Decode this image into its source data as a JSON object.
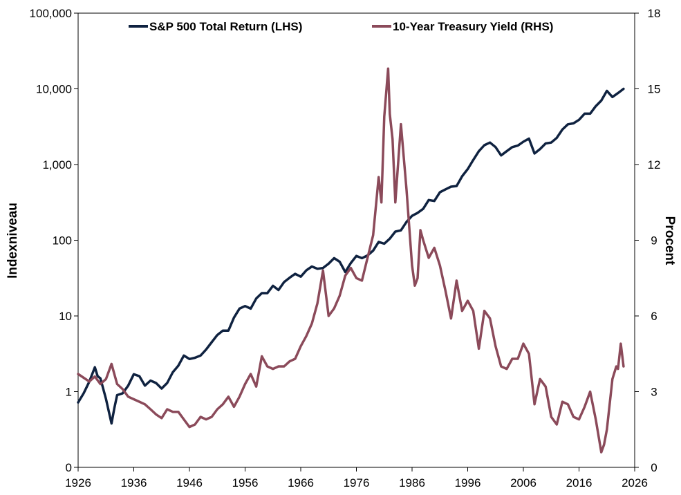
{
  "chart_data": {
    "type": "line",
    "x_axis": {
      "min": 1926,
      "max": 2026,
      "ticks": [
        "1926",
        "1936",
        "1946",
        "1956",
        "1966",
        "1976",
        "1986",
        "1996",
        "2006",
        "2016",
        "2026"
      ]
    },
    "y_left": {
      "label": "Indexniveau",
      "scale": "log",
      "ticks": [
        {
          "value": 0.1,
          "label": "0"
        },
        {
          "value": 1,
          "label": "1"
        },
        {
          "value": 10,
          "label": "10"
        },
        {
          "value": 100,
          "label": "100"
        },
        {
          "value": 1000,
          "label": "1,000"
        },
        {
          "value": 10000,
          "label": "10,000"
        },
        {
          "value": 100000,
          "label": "100,000"
        }
      ]
    },
    "y_right": {
      "label": "Procent",
      "scale": "linear",
      "min": 0,
      "max": 18,
      "ticks": [
        {
          "value": 0,
          "label": "0"
        },
        {
          "value": 3,
          "label": "3"
        },
        {
          "value": 6,
          "label": "6"
        },
        {
          "value": 9,
          "label": "9"
        },
        {
          "value": 12,
          "label": "12"
        },
        {
          "value": 15,
          "label": "15"
        },
        {
          "value": 18,
          "label": "18"
        }
      ]
    },
    "series": [
      {
        "name": "S&P 500 Total Return (LHS)",
        "color": "#0f2240",
        "axis": "left",
        "points": [
          [
            1926,
            0.72
          ],
          [
            1927,
            0.95
          ],
          [
            1928,
            1.35
          ],
          [
            1929,
            2.1
          ],
          [
            1929.5,
            1.6
          ],
          [
            1930,
            1.5
          ],
          [
            1931,
            0.8
          ],
          [
            1932,
            0.38
          ],
          [
            1932.5,
            0.6
          ],
          [
            1933,
            0.9
          ],
          [
            1934,
            0.95
          ],
          [
            1935,
            1.2
          ],
          [
            1936,
            1.7
          ],
          [
            1937,
            1.6
          ],
          [
            1938,
            1.2
          ],
          [
            1939,
            1.4
          ],
          [
            1940,
            1.3
          ],
          [
            1941,
            1.1
          ],
          [
            1942,
            1.3
          ],
          [
            1943,
            1.8
          ],
          [
            1944,
            2.2
          ],
          [
            1945,
            3.0
          ],
          [
            1946,
            2.7
          ],
          [
            1947,
            2.8
          ],
          [
            1948,
            3.0
          ],
          [
            1949,
            3.6
          ],
          [
            1950,
            4.5
          ],
          [
            1951,
            5.6
          ],
          [
            1952,
            6.4
          ],
          [
            1953,
            6.4
          ],
          [
            1954,
            9.5
          ],
          [
            1955,
            12.5
          ],
          [
            1956,
            13.5
          ],
          [
            1957,
            12.5
          ],
          [
            1958,
            17
          ],
          [
            1959,
            20
          ],
          [
            1960,
            20
          ],
          [
            1961,
            25
          ],
          [
            1962,
            22
          ],
          [
            1963,
            28
          ],
          [
            1964,
            32
          ],
          [
            1965,
            36
          ],
          [
            1966,
            33
          ],
          [
            1967,
            40
          ],
          [
            1968,
            45
          ],
          [
            1969,
            42
          ],
          [
            1970,
            43
          ],
          [
            1971,
            49
          ],
          [
            1972,
            58
          ],
          [
            1973,
            52
          ],
          [
            1974,
            38
          ],
          [
            1975,
            50
          ],
          [
            1976,
            62
          ],
          [
            1977,
            58
          ],
          [
            1978,
            63
          ],
          [
            1979,
            73
          ],
          [
            1980,
            95
          ],
          [
            1981,
            90
          ],
          [
            1982,
            105
          ],
          [
            1983,
            130
          ],
          [
            1984,
            135
          ],
          [
            1985,
            175
          ],
          [
            1986,
            210
          ],
          [
            1987,
            230
          ],
          [
            1988,
            260
          ],
          [
            1989,
            340
          ],
          [
            1990,
            330
          ],
          [
            1991,
            430
          ],
          [
            1992,
            470
          ],
          [
            1993,
            510
          ],
          [
            1994,
            520
          ],
          [
            1995,
            700
          ],
          [
            1996,
            870
          ],
          [
            1997,
            1150
          ],
          [
            1998,
            1500
          ],
          [
            1999,
            1800
          ],
          [
            2000,
            1950
          ],
          [
            2001,
            1700
          ],
          [
            2002,
            1320
          ],
          [
            2003,
            1500
          ],
          [
            2004,
            1700
          ],
          [
            2005,
            1780
          ],
          [
            2006,
            2000
          ],
          [
            2007,
            2200
          ],
          [
            2008,
            1400
          ],
          [
            2009,
            1600
          ],
          [
            2010,
            1900
          ],
          [
            2011,
            1950
          ],
          [
            2012,
            2250
          ],
          [
            2013,
            2900
          ],
          [
            2014,
            3400
          ],
          [
            2015,
            3500
          ],
          [
            2016,
            3900
          ],
          [
            2017,
            4700
          ],
          [
            2018,
            4700
          ],
          [
            2019,
            5900
          ],
          [
            2020,
            7000
          ],
          [
            2021,
            9400
          ],
          [
            2022,
            7800
          ],
          [
            2023,
            8800
          ],
          [
            2024,
            10000
          ]
        ]
      },
      {
        "name": "10-Year Treasury Yield (RHS)",
        "color": "#8b4a5a",
        "axis": "right",
        "points": [
          [
            1926,
            3.7
          ],
          [
            1928,
            3.4
          ],
          [
            1929,
            3.6
          ],
          [
            1930,
            3.3
          ],
          [
            1931,
            3.5
          ],
          [
            1932,
            4.1
          ],
          [
            1933,
            3.3
          ],
          [
            1934,
            3.1
          ],
          [
            1935,
            2.8
          ],
          [
            1936,
            2.7
          ],
          [
            1937,
            2.6
          ],
          [
            1938,
            2.5
          ],
          [
            1939,
            2.3
          ],
          [
            1940,
            2.1
          ],
          [
            1941,
            1.95
          ],
          [
            1942,
            2.3
          ],
          [
            1943,
            2.2
          ],
          [
            1944,
            2.2
          ],
          [
            1945,
            1.9
          ],
          [
            1946,
            1.6
          ],
          [
            1947,
            1.7
          ],
          [
            1948,
            2.0
          ],
          [
            1949,
            1.9
          ],
          [
            1950,
            2.0
          ],
          [
            1951,
            2.3
          ],
          [
            1952,
            2.5
          ],
          [
            1953,
            2.8
          ],
          [
            1954,
            2.4
          ],
          [
            1955,
            2.8
          ],
          [
            1956,
            3.3
          ],
          [
            1957,
            3.7
          ],
          [
            1958,
            3.2
          ],
          [
            1959,
            4.4
          ],
          [
            1960,
            4.0
          ],
          [
            1961,
            3.9
          ],
          [
            1962,
            4.0
          ],
          [
            1963,
            4.0
          ],
          [
            1964,
            4.2
          ],
          [
            1965,
            4.3
          ],
          [
            1966,
            4.8
          ],
          [
            1967,
            5.2
          ],
          [
            1968,
            5.7
          ],
          [
            1969,
            6.5
          ],
          [
            1970,
            7.8
          ],
          [
            1971,
            6.0
          ],
          [
            1972,
            6.3
          ],
          [
            1973,
            6.8
          ],
          [
            1974,
            7.6
          ],
          [
            1975,
            7.9
          ],
          [
            1976,
            7.5
          ],
          [
            1977,
            7.4
          ],
          [
            1978,
            8.3
          ],
          [
            1979,
            9.2
          ],
          [
            1980,
            11.5
          ],
          [
            1980.5,
            10.5
          ],
          [
            1981,
            13.9
          ],
          [
            1981.7,
            15.8
          ],
          [
            1982,
            14.0
          ],
          [
            1982.5,
            13.0
          ],
          [
            1983,
            10.5
          ],
          [
            1984,
            13.6
          ],
          [
            1985,
            11.0
          ],
          [
            1986,
            8.0
          ],
          [
            1986.5,
            7.2
          ],
          [
            1987,
            7.5
          ],
          [
            1987.5,
            9.4
          ],
          [
            1988,
            9.0
          ],
          [
            1989,
            8.3
          ],
          [
            1990,
            8.7
          ],
          [
            1991,
            8.0
          ],
          [
            1992,
            7.0
          ],
          [
            1993,
            5.9
          ],
          [
            1994,
            7.4
          ],
          [
            1995,
            6.2
          ],
          [
            1996,
            6.6
          ],
          [
            1997,
            6.2
          ],
          [
            1998,
            4.7
          ],
          [
            1999,
            6.2
          ],
          [
            2000,
            5.9
          ],
          [
            2001,
            4.8
          ],
          [
            2002,
            4.0
          ],
          [
            2003,
            3.9
          ],
          [
            2004,
            4.3
          ],
          [
            2005,
            4.3
          ],
          [
            2006,
            4.9
          ],
          [
            2007,
            4.5
          ],
          [
            2008,
            2.5
          ],
          [
            2009,
            3.5
          ],
          [
            2010,
            3.2
          ],
          [
            2011,
            2.0
          ],
          [
            2012,
            1.7
          ],
          [
            2013,
            2.6
          ],
          [
            2014,
            2.5
          ],
          [
            2015,
            2.0
          ],
          [
            2016,
            1.9
          ],
          [
            2017,
            2.4
          ],
          [
            2018,
            3.0
          ],
          [
            2019,
            1.9
          ],
          [
            2020,
            0.6
          ],
          [
            2020.5,
            0.9
          ],
          [
            2021,
            1.5
          ],
          [
            2022,
            3.5
          ],
          [
            2022.7,
            4.0
          ],
          [
            2023,
            3.9
          ],
          [
            2023.5,
            4.9
          ],
          [
            2024,
            4.0
          ]
        ]
      }
    ]
  }
}
